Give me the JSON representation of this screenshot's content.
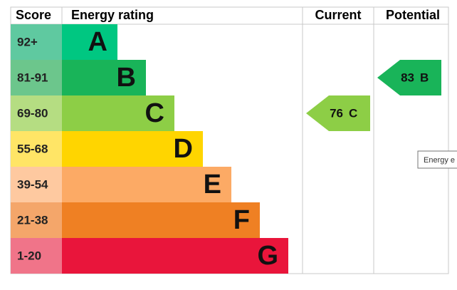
{
  "chart_data": {
    "type": "epc",
    "headers": [
      "Score",
      "Energy rating",
      "Current",
      "Potential"
    ],
    "bands": [
      {
        "score": "92+",
        "letter": "A",
        "color": "#00c781",
        "score_color": "#5fc9a0"
      },
      {
        "score": "81-91",
        "letter": "B",
        "color": "#19b459",
        "score_color": "#6cc68c"
      },
      {
        "score": "69-80",
        "letter": "C",
        "color": "#8dce46",
        "score_color": "#b5dd82"
      },
      {
        "score": "55-68",
        "letter": "D",
        "color": "#ffd500",
        "score_color": "#ffe566"
      },
      {
        "score": "39-54",
        "letter": "E",
        "color": "#fcaa65",
        "score_color": "#fec9a0"
      },
      {
        "score": "21-38",
        "letter": "F",
        "color": "#ef8023",
        "score_color": "#f4a66a"
      },
      {
        "score": "1-20",
        "letter": "G",
        "color": "#e9153b",
        "score_color": "#f07489"
      }
    ],
    "current": {
      "value": 76,
      "letter": "C",
      "color": "#8dce46"
    },
    "potential": {
      "value": 83,
      "letter": "B",
      "color": "#19b459"
    },
    "tooltip": "Energy e"
  }
}
